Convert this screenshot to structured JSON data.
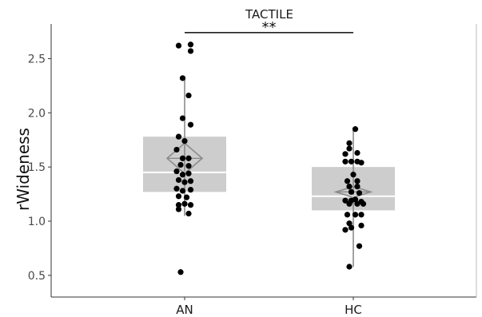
{
  "chart_data": {
    "type": "box",
    "title": "TACTILE",
    "xlabel": "",
    "ylabel": "rWideness",
    "ylim": [
      0.3,
      2.82
    ],
    "yticks": [
      0.5,
      1.0,
      1.5,
      2.0,
      2.5
    ],
    "ytick_labels": [
      "0.5",
      "1.0",
      "1.5",
      "2.0",
      "2.5"
    ],
    "categories": [
      "AN",
      "HC"
    ],
    "groups": [
      {
        "name": "AN",
        "q1": 1.27,
        "median": 1.45,
        "q3": 1.78,
        "mean": 1.58,
        "ci_low": 1.44,
        "ci_high": 1.72,
        "whisker_low": 1.05,
        "whisker_high": 2.31,
        "points": [
          {
            "x": -0.03,
            "y": 2.62
          },
          {
            "x": 0.03,
            "y": 2.63
          },
          {
            "x": 0.03,
            "y": 2.57
          },
          {
            "x": -0.01,
            "y": 2.32
          },
          {
            "x": 0.02,
            "y": 2.16
          },
          {
            "x": -0.01,
            "y": 1.95
          },
          {
            "x": 0.03,
            "y": 1.89
          },
          {
            "x": -0.03,
            "y": 1.78
          },
          {
            "x": 0.0,
            "y": 1.74
          },
          {
            "x": -0.04,
            "y": 1.66
          },
          {
            "x": -0.01,
            "y": 1.58
          },
          {
            "x": 0.02,
            "y": 1.58
          },
          {
            "x": -0.02,
            "y": 1.52
          },
          {
            "x": 0.02,
            "y": 1.51
          },
          {
            "x": -0.04,
            "y": 1.46
          },
          {
            "x": -0.01,
            "y": 1.43
          },
          {
            "x": 0.02,
            "y": 1.44
          },
          {
            "x": -0.03,
            "y": 1.38
          },
          {
            "x": 0.0,
            "y": 1.36
          },
          {
            "x": 0.03,
            "y": 1.37
          },
          {
            "x": -0.04,
            "y": 1.3
          },
          {
            "x": -0.01,
            "y": 1.28
          },
          {
            "x": 0.03,
            "y": 1.29
          },
          {
            "x": -0.03,
            "y": 1.23
          },
          {
            "x": 0.01,
            "y": 1.22
          },
          {
            "x": -0.03,
            "y": 1.15
          },
          {
            "x": 0.0,
            "y": 1.16
          },
          {
            "x": 0.03,
            "y": 1.15
          },
          {
            "x": -0.03,
            "y": 1.11
          },
          {
            "x": 0.02,
            "y": 1.07
          },
          {
            "x": -0.02,
            "y": 0.53
          }
        ]
      },
      {
        "name": "HC",
        "q1": 1.1,
        "median": 1.23,
        "q3": 1.5,
        "mean": 1.27,
        "ci_low": 1.22,
        "ci_high": 1.32,
        "whisker_low": 0.58,
        "whisker_high": 1.84,
        "points": [
          {
            "x": 0.01,
            "y": 1.85
          },
          {
            "x": -0.02,
            "y": 1.72
          },
          {
            "x": -0.02,
            "y": 1.67
          },
          {
            "x": 0.02,
            "y": 1.63
          },
          {
            "x": -0.04,
            "y": 1.62
          },
          {
            "x": -0.04,
            "y": 1.55
          },
          {
            "x": -0.01,
            "y": 1.55
          },
          {
            "x": 0.02,
            "y": 1.55
          },
          {
            "x": 0.04,
            "y": 1.54
          },
          {
            "x": 0.0,
            "y": 1.43
          },
          {
            "x": -0.03,
            "y": 1.37
          },
          {
            "x": 0.02,
            "y": 1.37
          },
          {
            "x": -0.02,
            "y": 1.32
          },
          {
            "x": 0.02,
            "y": 1.32
          },
          {
            "x": -0.01,
            "y": 1.27
          },
          {
            "x": 0.03,
            "y": 1.26
          },
          {
            "x": -0.04,
            "y": 1.19
          },
          {
            "x": -0.01,
            "y": 1.19
          },
          {
            "x": 0.01,
            "y": 1.2
          },
          {
            "x": 0.04,
            "y": 1.18
          },
          {
            "x": -0.02,
            "y": 1.16
          },
          {
            "x": 0.02,
            "y": 1.16
          },
          {
            "x": 0.05,
            "y": 1.16
          },
          {
            "x": -0.03,
            "y": 1.06
          },
          {
            "x": 0.01,
            "y": 1.06
          },
          {
            "x": 0.04,
            "y": 1.06
          },
          {
            "x": -0.02,
            "y": 0.98
          },
          {
            "x": 0.04,
            "y": 0.96
          },
          {
            "x": -0.04,
            "y": 0.92
          },
          {
            "x": -0.01,
            "y": 0.94
          },
          {
            "x": 0.03,
            "y": 0.77
          },
          {
            "x": -0.02,
            "y": 0.58
          }
        ]
      }
    ],
    "significance": {
      "between": [
        "AN",
        "HC"
      ],
      "label": "**",
      "y": 2.74
    },
    "grid": false,
    "legend": "none",
    "colors": {
      "box_fill": "#c8c8c8",
      "median_line": "#ffffff",
      "whisker": "#8c8c8c",
      "mean_diamond": "#8c8c8c",
      "point": "#000000",
      "axis": "#333333",
      "sig_bar": "#222222"
    }
  }
}
